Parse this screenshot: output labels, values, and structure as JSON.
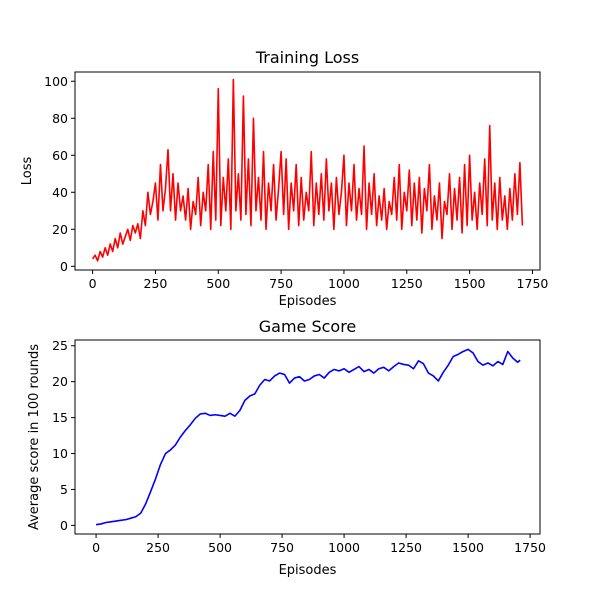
{
  "chart_data": [
    {
      "type": "line",
      "title": "Training Loss",
      "xlabel": "Episodes",
      "ylabel": "Loss",
      "xlim": [
        -70,
        1780
      ],
      "ylim": [
        -2,
        105
      ],
      "xticks": [
        0,
        250,
        500,
        750,
        1000,
        1250,
        1500,
        1750
      ],
      "yticks": [
        0,
        20,
        40,
        60,
        80,
        100
      ],
      "grid": false,
      "series": [
        {
          "color": "#ff0000",
          "x": [
            0,
            10,
            20,
            30,
            40,
            50,
            60,
            70,
            80,
            90,
            100,
            110,
            120,
            130,
            140,
            150,
            160,
            170,
            180,
            190,
            200,
            210,
            220,
            230,
            240,
            250,
            260,
            270,
            280,
            290,
            300,
            310,
            320,
            330,
            340,
            350,
            360,
            370,
            380,
            390,
            400,
            410,
            420,
            430,
            440,
            450,
            460,
            470,
            480,
            490,
            500,
            510,
            520,
            530,
            540,
            550,
            560,
            570,
            580,
            590,
            600,
            610,
            620,
            630,
            640,
            650,
            660,
            670,
            680,
            690,
            700,
            710,
            720,
            730,
            740,
            750,
            760,
            770,
            780,
            790,
            800,
            810,
            820,
            830,
            840,
            850,
            860,
            870,
            880,
            890,
            900,
            910,
            920,
            930,
            940,
            950,
            960,
            970,
            980,
            990,
            1000,
            1010,
            1020,
            1030,
            1040,
            1050,
            1060,
            1070,
            1080,
            1090,
            1100,
            1110,
            1120,
            1130,
            1140,
            1150,
            1160,
            1170,
            1180,
            1190,
            1200,
            1210,
            1220,
            1230,
            1240,
            1250,
            1260,
            1270,
            1280,
            1290,
            1300,
            1310,
            1320,
            1330,
            1340,
            1350,
            1360,
            1370,
            1380,
            1390,
            1400,
            1410,
            1420,
            1430,
            1440,
            1450,
            1460,
            1470,
            1480,
            1490,
            1500,
            1510,
            1520,
            1530,
            1540,
            1550,
            1560,
            1570,
            1580,
            1590,
            1600,
            1610,
            1620,
            1630,
            1640,
            1650,
            1660,
            1670,
            1680,
            1690,
            1700,
            1710
          ],
          "values": [
            4,
            6,
            3,
            8,
            5,
            10,
            6,
            12,
            8,
            15,
            10,
            18,
            12,
            16,
            20,
            14,
            22,
            18,
            23,
            15,
            30,
            22,
            40,
            28,
            35,
            45,
            25,
            55,
            30,
            42,
            63,
            30,
            50,
            25,
            45,
            30,
            38,
            25,
            42,
            20,
            35,
            28,
            48,
            22,
            40,
            30,
            55,
            20,
            62,
            25,
            96,
            22,
            48,
            30,
            58,
            20,
            101,
            30,
            50,
            25,
            92,
            28,
            58,
            22,
            80,
            30,
            48,
            25,
            62,
            20,
            45,
            30,
            55,
            25,
            42,
            62,
            28,
            58,
            20,
            45,
            30,
            55,
            22,
            48,
            25,
            40,
            30,
            62,
            22,
            45,
            28,
            50,
            25,
            58,
            30,
            45,
            20,
            48,
            28,
            40,
            60,
            22,
            45,
            30,
            55,
            25,
            42,
            28,
            65,
            20,
            45,
            28,
            50,
            22,
            38,
            25,
            42,
            20,
            35,
            28,
            48,
            25,
            55,
            20,
            40,
            30,
            52,
            22,
            45,
            25,
            48,
            18,
            42,
            30,
            55,
            20,
            38,
            25,
            45,
            15,
            35,
            28,
            50,
            20,
            42,
            25,
            48,
            18,
            55,
            22,
            60,
            25,
            40,
            20,
            45,
            28,
            58,
            22,
            76,
            25,
            45,
            20,
            48,
            25,
            38,
            20,
            42,
            25,
            50,
            28,
            56,
            22
          ]
        }
      ]
    },
    {
      "type": "line",
      "title": "Game Score",
      "xlabel": "Episodes",
      "ylabel": "Average score in 100 rounds",
      "xlim": [
        -85,
        1790
      ],
      "ylim": [
        -1.2,
        25.8
      ],
      "xticks": [
        0,
        250,
        500,
        750,
        1000,
        1250,
        1500,
        1750
      ],
      "yticks": [
        0,
        5,
        10,
        15,
        20,
        25
      ],
      "grid": false,
      "series": [
        {
          "color": "#0000ff",
          "x": [
            0,
            20,
            40,
            60,
            80,
            100,
            120,
            140,
            160,
            180,
            200,
            220,
            240,
            260,
            280,
            300,
            320,
            340,
            360,
            380,
            400,
            420,
            440,
            460,
            480,
            500,
            520,
            540,
            560,
            580,
            600,
            620,
            640,
            660,
            680,
            700,
            720,
            740,
            760,
            780,
            800,
            820,
            840,
            860,
            880,
            900,
            920,
            940,
            960,
            980,
            1000,
            1020,
            1040,
            1060,
            1080,
            1100,
            1120,
            1140,
            1160,
            1180,
            1200,
            1220,
            1240,
            1260,
            1280,
            1300,
            1320,
            1340,
            1360,
            1380,
            1400,
            1420,
            1440,
            1460,
            1480,
            1500,
            1520,
            1540,
            1560,
            1580,
            1600,
            1620,
            1640,
            1660,
            1680,
            1700,
            1710
          ],
          "values": [
            0.1,
            0.2,
            0.4,
            0.5,
            0.6,
            0.7,
            0.8,
            1.0,
            1.2,
            1.7,
            3.0,
            4.7,
            6.5,
            8.5,
            10.0,
            10.5,
            11.2,
            12.3,
            13.2,
            14.0,
            14.9,
            15.5,
            15.6,
            15.3,
            15.4,
            15.3,
            15.2,
            15.6,
            15.2,
            16.0,
            17.4,
            18.0,
            18.3,
            19.5,
            20.3,
            20.1,
            20.8,
            21.2,
            21.0,
            19.8,
            20.5,
            20.7,
            20.1,
            20.3,
            20.8,
            21.0,
            20.5,
            21.3,
            21.7,
            21.5,
            21.8,
            21.3,
            21.7,
            22.1,
            21.4,
            21.7,
            21.2,
            21.8,
            22.0,
            21.5,
            22.1,
            22.6,
            22.4,
            22.3,
            21.8,
            22.9,
            22.5,
            21.2,
            20.8,
            20.1,
            21.3,
            22.3,
            23.5,
            23.8,
            24.2,
            24.5,
            24.0,
            22.8,
            22.3,
            22.6,
            22.2,
            22.8,
            22.4,
            24.2,
            23.3,
            22.7,
            23.0
          ]
        }
      ]
    }
  ]
}
